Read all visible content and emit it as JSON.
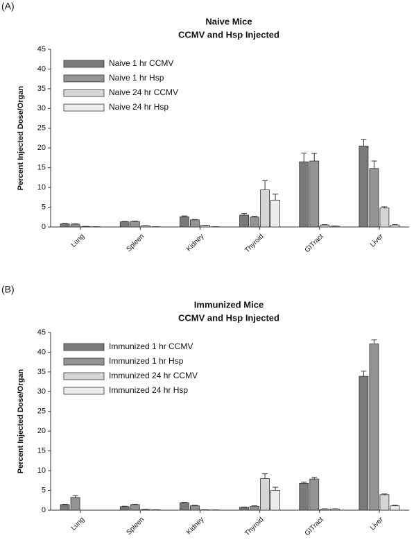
{
  "chart_data": [
    {
      "type": "bar",
      "label": "(A)",
      "title": "Naive Mice",
      "subtitle": "CCMV and Hsp Injected",
      "y_label": "Percent Injected Dose/Organ",
      "categories": [
        "Lung",
        "Spleen",
        "Kidney",
        "Thyroid",
        "GITract",
        "Liver"
      ],
      "series": [
        {
          "name": "Naive  1 hr CCMV",
          "color": "#7a7a7a",
          "values": [
            0.8,
            1.3,
            2.6,
            3.0,
            16.5,
            20.5
          ],
          "errors": [
            0.1,
            0.1,
            0.2,
            0.4,
            2.2,
            1.7
          ]
        },
        {
          "name": "Naive  1 hr Hsp",
          "color": "#949494",
          "values": [
            0.7,
            1.4,
            1.8,
            2.5,
            16.7,
            14.8
          ],
          "errors": [
            0.1,
            0.1,
            0.1,
            0.2,
            1.9,
            1.9
          ]
        },
        {
          "name": "Naive 24 hr CCMV",
          "color": "#d6d6d6",
          "values": [
            0.1,
            0.3,
            0.4,
            9.4,
            0.5,
            4.8
          ],
          "errors": [
            0.05,
            0.05,
            0.05,
            2.3,
            0.1,
            0.3
          ]
        },
        {
          "name": "Naive 24 hr Hsp",
          "color": "#ececec",
          "values": [
            0.05,
            0.05,
            0.05,
            6.8,
            0.2,
            0.5
          ],
          "errors": [
            0.02,
            0.02,
            0.02,
            1.5,
            0.05,
            0.1
          ]
        }
      ],
      "ylim": [
        0,
        45
      ],
      "yticks": [
        0,
        5,
        10,
        15,
        20,
        25,
        30,
        35,
        40,
        45
      ],
      "legend": "upper-left"
    },
    {
      "type": "bar",
      "label": "(B)",
      "title": "Immunized Mice",
      "subtitle": "CCMV and Hsp Injected",
      "y_label": "Percent Injected Dose/Organ",
      "categories": [
        "Lung",
        "Spleen",
        "Kidney",
        "Thyroid",
        "GITract",
        "Liver"
      ],
      "series": [
        {
          "name": "Immunized 1 hr CCMV",
          "color": "#7a7a7a",
          "values": [
            1.4,
            0.9,
            1.9,
            0.7,
            6.8,
            33.9
          ],
          "errors": [
            0.1,
            0.1,
            0.1,
            0.1,
            0.3,
            1.3
          ]
        },
        {
          "name": "Immunized 1 hr Hsp",
          "color": "#949494",
          "values": [
            3.2,
            1.4,
            1.1,
            1.0,
            7.9,
            42.1
          ],
          "errors": [
            0.5,
            0.1,
            0.1,
            0.1,
            0.4,
            1.0
          ]
        },
        {
          "name": "Immunized 24 hr CCMV",
          "color": "#d6d6d6",
          "values": [
            0,
            0.2,
            0.1,
            8.0,
            0.3,
            3.9
          ],
          "errors": [
            0,
            0.05,
            0.02,
            1.2,
            0.05,
            0.2
          ]
        },
        {
          "name": "Immunized 24 hr Hsp",
          "color": "#ececec",
          "values": [
            0,
            0.1,
            0.05,
            5.0,
            0.3,
            1.1
          ],
          "errors": [
            0,
            0.02,
            0.02,
            0.8,
            0.05,
            0.1
          ]
        }
      ],
      "ylim": [
        0,
        45
      ],
      "yticks": [
        0,
        5,
        10,
        15,
        20,
        25,
        30,
        35,
        40,
        45
      ],
      "legend": "upper-left"
    }
  ]
}
